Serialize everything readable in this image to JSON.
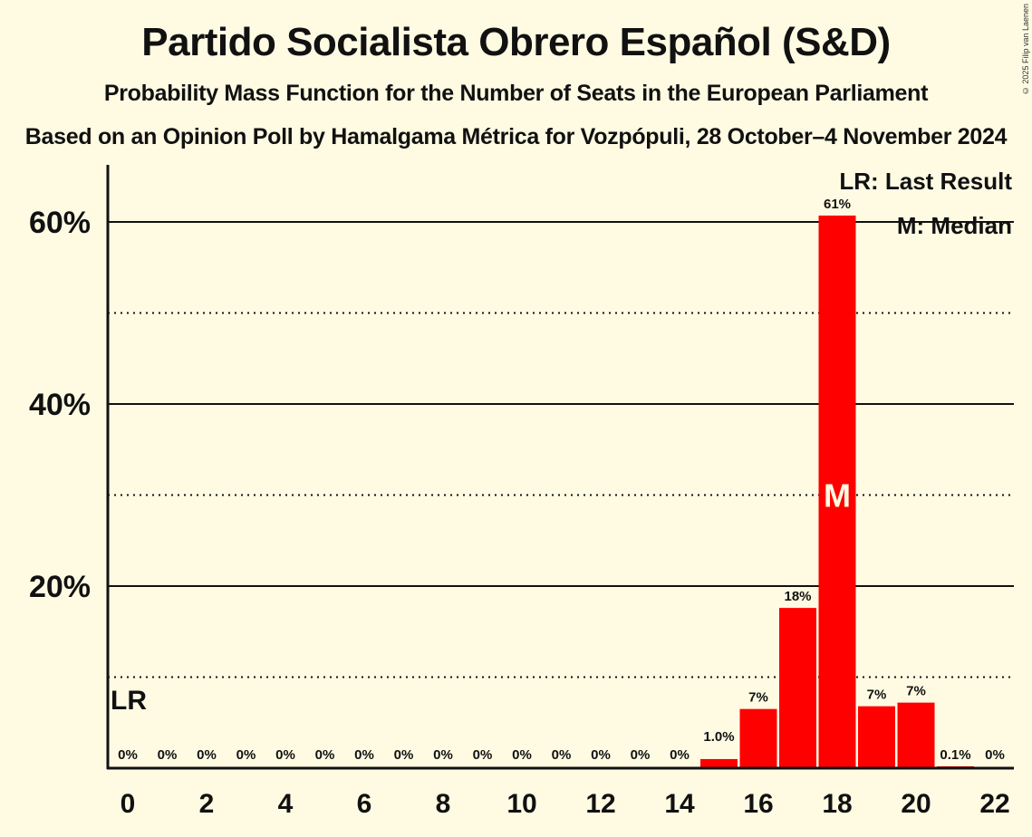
{
  "header": {
    "title": "Partido Socialista Obrero Español (S&D)",
    "subtitle": "Probability Mass Function for the Number of Seats in the European Parliament",
    "subsubtitle": "Based on an Opinion Poll by Hamalgama Métrica for Vozpópuli, 28 October–4 November 2024",
    "copyright": "© 2025 Filip van Laenen"
  },
  "legend": {
    "last_result": "LR: Last Result",
    "median": "M: Median"
  },
  "markers": {
    "last_result_label": "LR",
    "median_label": "M"
  },
  "colors": {
    "bar": "#ff0000",
    "background": "#fffbe3",
    "text": "#111111"
  },
  "chart_data": {
    "type": "bar",
    "title": "Partido Socialista Obrero Español (S&D)",
    "subtitle": "Probability Mass Function for the Number of Seats in the European Parliament",
    "xlabel": "",
    "ylabel": "",
    "categories": [
      0,
      1,
      2,
      3,
      4,
      5,
      6,
      7,
      8,
      9,
      10,
      11,
      12,
      13,
      14,
      15,
      16,
      17,
      18,
      19,
      20,
      21,
      22
    ],
    "values": [
      0,
      0,
      0,
      0,
      0,
      0,
      0,
      0,
      0,
      0,
      0,
      0,
      0,
      0,
      0,
      1.0,
      6.5,
      17.6,
      60.7,
      6.8,
      7.2,
      0.1,
      0
    ],
    "value_labels": [
      "0%",
      "0%",
      "0%",
      "0%",
      "0%",
      "0%",
      "0%",
      "0%",
      "0%",
      "0%",
      "0%",
      "0%",
      "0%",
      "0%",
      "0%",
      "1.0%",
      "7%",
      "18%",
      "61%",
      "7%",
      "7%",
      "0.1%",
      "0%"
    ],
    "x_tick_labels": [
      "0",
      "2",
      "4",
      "6",
      "8",
      "10",
      "12",
      "14",
      "16",
      "18",
      "20",
      "22"
    ],
    "y_tick_labels": [
      "20%",
      "40%",
      "60%"
    ],
    "ylim": [
      0,
      66
    ],
    "grid": {
      "solid": [
        20,
        40,
        60
      ],
      "dotted": [
        10,
        30,
        50
      ]
    },
    "last_result_seat": 0,
    "median_seat": 18,
    "legend_position": "top-right"
  }
}
